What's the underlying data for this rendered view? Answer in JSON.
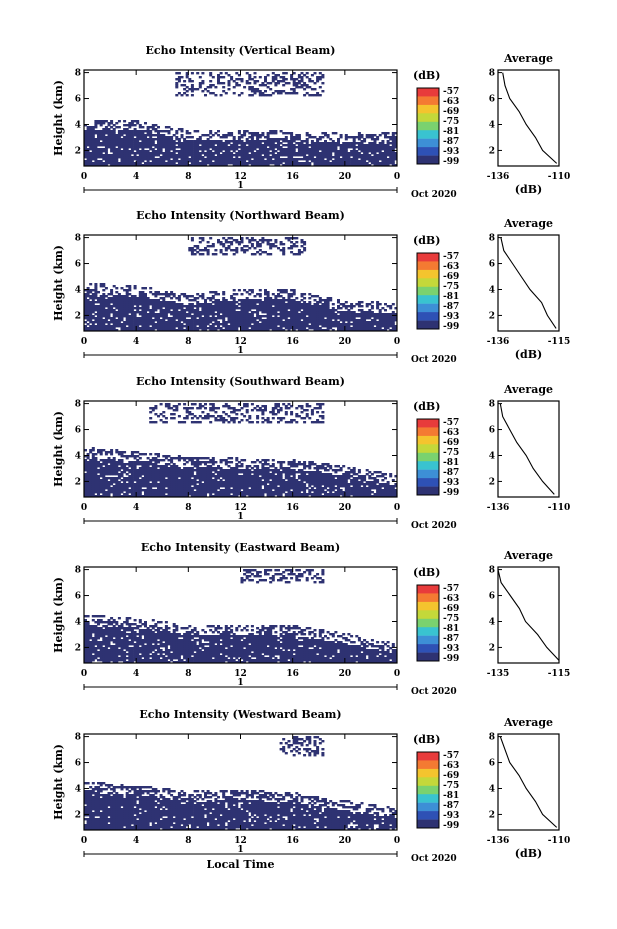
{
  "figure": {
    "x_axis_label": "Local Time",
    "date_label": "Oct 2020",
    "day_label": "1",
    "colorbar_unit": "(dB)",
    "colorbar_ticks": [
      "-57",
      "-63",
      "-69",
      "-75",
      "-81",
      "-87",
      "-93",
      "-99"
    ],
    "colors": [
      "#2e3272",
      "#2e51b5",
      "#3d8fd6",
      "#39c3d0",
      "#7ad26f",
      "#c4d83a",
      "#f4c42e",
      "#f47a32",
      "#e83b3b"
    ]
  },
  "chart_data": [
    {
      "type": "heatmap",
      "title": "Echo Intensity (Vertical Beam)",
      "xlabel": "",
      "ylabel": "Height (km)",
      "xlim": [
        0,
        24
      ],
      "ylim": [
        0.8,
        8.2
      ],
      "xticks": [
        "0",
        "4",
        "8",
        "12",
        "16",
        "20",
        "0"
      ],
      "yticks": [
        "2",
        "4",
        "6",
        "8"
      ],
      "colorbar": {
        "label": "(dB)",
        "ticks": [
          "-57",
          "-63",
          "-69",
          "-75",
          "-81",
          "-87",
          "-93",
          "-99"
        ]
      },
      "dense_top_km": [
        3.9,
        3.9,
        3.1,
        3.1,
        3.0,
        2.9,
        3.0
      ],
      "upper_layer": {
        "t_start": 7,
        "t_end": 18.5,
        "h_min": 6.2,
        "h_max": 8.0
      },
      "profile": {
        "title": "Average",
        "xlabel": "(dB)",
        "xticks": [
          "-136",
          "-110"
        ],
        "yticks": [
          "2",
          "4",
          "6",
          "8"
        ],
        "xlim": [
          -136,
          -110
        ],
        "ylim": [
          0.8,
          8.2
        ],
        "height_km": [
          1.0,
          2.0,
          3.0,
          4.0,
          5.0,
          6.0,
          7.0,
          8.0
        ],
        "mean_db": [
          -111,
          -117,
          -120,
          -124,
          -127,
          -131,
          -133,
          -134
        ]
      }
    },
    {
      "type": "heatmap",
      "title": "Echo Intensity (Northward Beam)",
      "xlabel": "",
      "ylabel": "Height (km)",
      "xlim": [
        0,
        24
      ],
      "ylim": [
        0.8,
        8.2
      ],
      "xticks": [
        "0",
        "4",
        "8",
        "12",
        "16",
        "20",
        "0"
      ],
      "yticks": [
        "2",
        "4",
        "6",
        "8"
      ],
      "colorbar": {
        "label": "(dB)",
        "ticks": [
          "-57",
          "-63",
          "-69",
          "-75",
          "-81",
          "-87",
          "-93",
          "-99"
        ]
      },
      "dense_top_km": [
        4.0,
        3.8,
        3.2,
        3.5,
        3.5,
        2.6,
        2.5
      ],
      "upper_layer": {
        "t_start": 8,
        "t_end": 17,
        "h_min": 6.6,
        "h_max": 8.0
      },
      "profile": {
        "title": "Average",
        "xlabel": "(dB)",
        "xticks": [
          "-136",
          "-115"
        ],
        "yticks": [
          "2",
          "4",
          "6",
          "8"
        ],
        "xlim": [
          -136,
          -115
        ],
        "ylim": [
          0.8,
          8.2
        ],
        "height_km": [
          1.0,
          2.0,
          3.0,
          4.0,
          5.0,
          6.0,
          7.0,
          8.0
        ],
        "mean_db": [
          -116,
          -119,
          -121,
          -125,
          -128,
          -131,
          -134,
          -135
        ]
      }
    },
    {
      "type": "heatmap",
      "title": "Echo Intensity (Southward Beam)",
      "xlabel": "",
      "ylabel": "Height (km)",
      "xlim": [
        0,
        24
      ],
      "ylim": [
        0.8,
        8.2
      ],
      "xticks": [
        "0",
        "4",
        "8",
        "12",
        "16",
        "20",
        "0"
      ],
      "yticks": [
        "2",
        "4",
        "6",
        "8"
      ],
      "colorbar": {
        "label": "(dB)",
        "ticks": [
          "-57",
          "-63",
          "-69",
          "-75",
          "-81",
          "-87",
          "-93",
          "-99"
        ]
      },
      "dense_top_km": [
        4.2,
        3.8,
        3.4,
        3.3,
        3.2,
        2.7,
        2.0
      ],
      "upper_layer": {
        "t_start": 5,
        "t_end": 18.5,
        "h_min": 6.5,
        "h_max": 8.0
      },
      "profile": {
        "title": "Average",
        "xlabel": "",
        "xticks": [
          "-136",
          "-110"
        ],
        "yticks": [
          "2",
          "4",
          "6",
          "8"
        ],
        "xlim": [
          -136,
          -110
        ],
        "ylim": [
          0.8,
          8.2
        ],
        "height_km": [
          1.0,
          2.0,
          3.0,
          4.0,
          5.0,
          6.0,
          7.0,
          8.0
        ],
        "mean_db": [
          -112,
          -117,
          -121,
          -124,
          -128,
          -131,
          -134,
          -135
        ]
      }
    },
    {
      "type": "heatmap",
      "title": "Echo Intensity (Eastward Beam)",
      "xlabel": "",
      "ylabel": "Height (km)",
      "xlim": [
        0,
        24
      ],
      "ylim": [
        0.8,
        8.2
      ],
      "xticks": [
        "0",
        "4",
        "8",
        "12",
        "16",
        "20",
        "0"
      ],
      "yticks": [
        "2",
        "4",
        "6",
        "8"
      ],
      "colorbar": {
        "label": "(dB)",
        "ticks": [
          "-57",
          "-63",
          "-69",
          "-75",
          "-81",
          "-87",
          "-93",
          "-99"
        ]
      },
      "dense_top_km": [
        4.0,
        3.8,
        3.3,
        3.3,
        3.2,
        2.6,
        1.8
      ],
      "upper_layer": {
        "t_start": 12,
        "t_end": 18.5,
        "h_min": 7.0,
        "h_max": 8.0
      },
      "profile": {
        "title": "Average",
        "xlabel": "",
        "xticks": [
          "-135",
          "-115"
        ],
        "yticks": [
          "2",
          "4",
          "6",
          "8"
        ],
        "xlim": [
          -135,
          -115
        ],
        "ylim": [
          0.8,
          8.2
        ],
        "height_km": [
          1.0,
          2.0,
          3.0,
          4.0,
          5.0,
          6.0,
          7.0,
          8.0
        ],
        "mean_db": [
          -115,
          -119,
          -122,
          -126,
          -128,
          -131,
          -134,
          -135
        ]
      }
    },
    {
      "type": "heatmap",
      "title": "Echo Intensity (Westward Beam)",
      "xlabel": "Local Time",
      "ylabel": "Height (km)",
      "xlim": [
        0,
        24
      ],
      "ylim": [
        0.8,
        8.2
      ],
      "xticks": [
        "0",
        "4",
        "8",
        "12",
        "16",
        "20",
        "0"
      ],
      "yticks": [
        "2",
        "4",
        "6",
        "8"
      ],
      "colorbar": {
        "label": "(dB)",
        "ticks": [
          "-57",
          "-63",
          "-69",
          "-75",
          "-81",
          "-87",
          "-93",
          "-99"
        ]
      },
      "dense_top_km": [
        4.0,
        3.8,
        3.3,
        3.4,
        3.2,
        2.6,
        2.0
      ],
      "upper_layer": {
        "t_start": 15,
        "t_end": 18.5,
        "h_min": 6.5,
        "h_max": 8.0
      },
      "profile": {
        "title": "Average",
        "xlabel": "(dB)",
        "xticks": [
          "-136",
          "-110"
        ],
        "yticks": [
          "2",
          "4",
          "6",
          "8"
        ],
        "xlim": [
          -136,
          -110
        ],
        "ylim": [
          0.8,
          8.2
        ],
        "height_km": [
          1.0,
          2.0,
          3.0,
          4.0,
          5.0,
          6.0,
          7.0,
          8.0
        ],
        "mean_db": [
          -111,
          -117,
          -120,
          -124,
          -127,
          -131,
          -133,
          -135
        ]
      }
    }
  ]
}
